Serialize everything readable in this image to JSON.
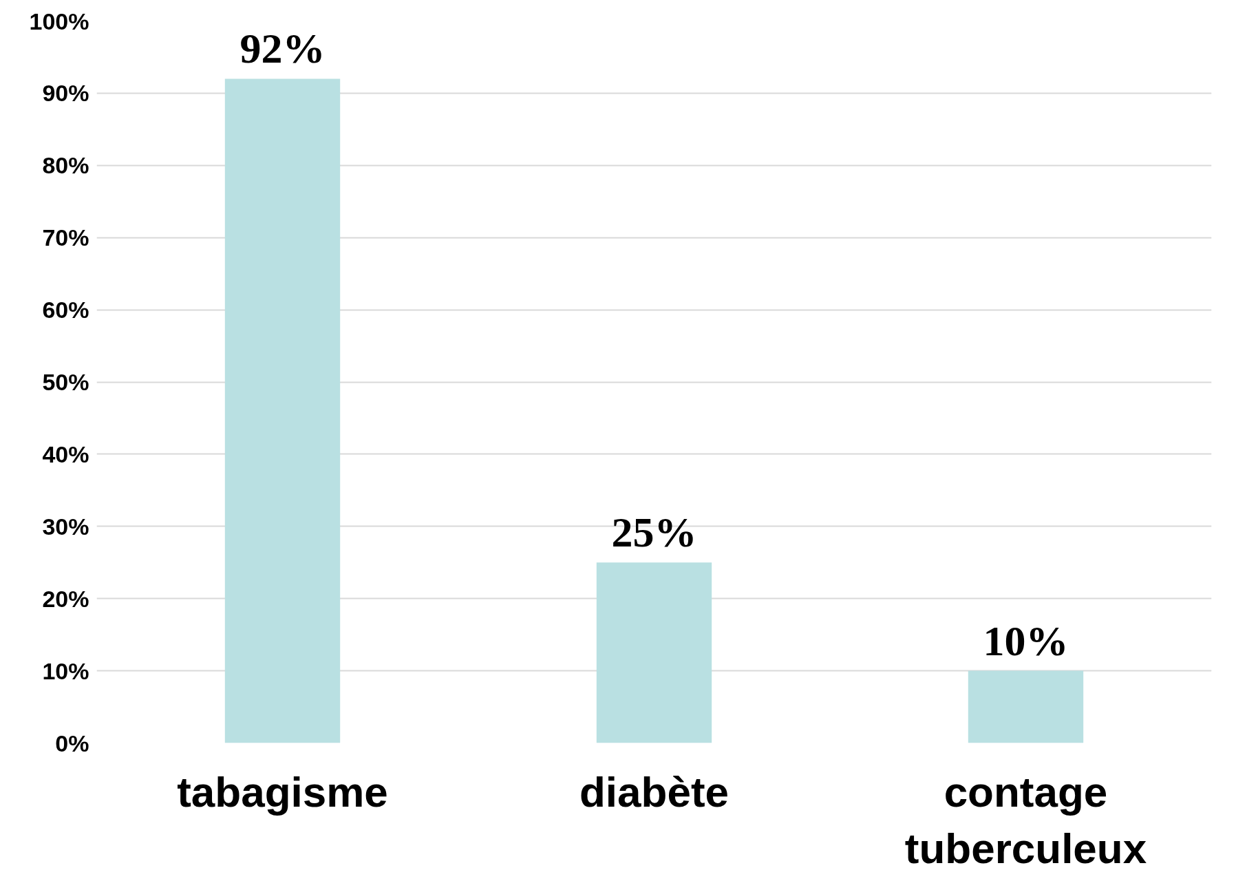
{
  "chart_data": {
    "type": "bar",
    "categories": [
      "tabagisme",
      "diabète",
      "contage tuberculeux"
    ],
    "values": [
      92,
      25,
      10
    ],
    "color": "#b9e0e2",
    "value_labels": [
      "92%",
      "25%",
      "10%"
    ],
    "ylim": [
      0,
      100
    ],
    "yticks": [
      {
        "value": 0,
        "label": "0%"
      },
      {
        "value": 10,
        "label": "10%"
      },
      {
        "value": 20,
        "label": "20%"
      },
      {
        "value": 30,
        "label": "30%"
      },
      {
        "value": 40,
        "label": "40%"
      },
      {
        "value": 50,
        "label": "50%"
      },
      {
        "value": 60,
        "label": "60%"
      },
      {
        "value": 70,
        "label": "70%"
      },
      {
        "value": 80,
        "label": "80%"
      },
      {
        "value": 90,
        "label": "90%"
      },
      {
        "value": 100,
        "label": "100%"
      }
    ],
    "grid": "y"
  }
}
